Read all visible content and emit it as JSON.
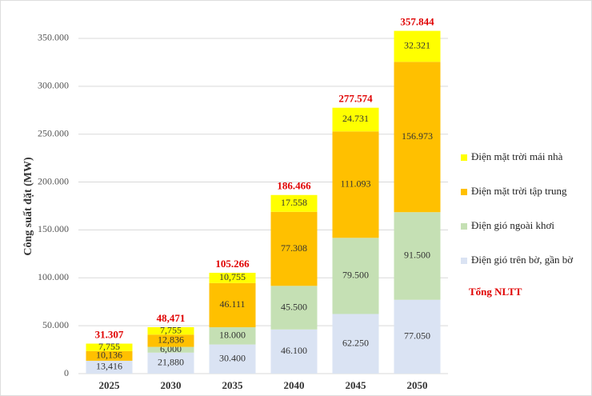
{
  "chart_data": {
    "type": "stacked_bar",
    "y_label": "Công suất đặt (MW)",
    "categories": [
      "2025",
      "2030",
      "2035",
      "2040",
      "2045",
      "2050"
    ],
    "series": [
      {
        "name": "Điện gió trên bờ, gần bờ",
        "color": "#dae3f3",
        "values": [
          13416,
          21880,
          30400,
          46100,
          62250,
          77050
        ],
        "value_labels": [
          "13,416",
          "21,880",
          "30.400",
          "46.100",
          "62.250",
          "77.050"
        ]
      },
      {
        "name": "Điện gió ngoài khơi",
        "color": "#c5e0b4",
        "values": [
          null,
          6000,
          18000,
          45500,
          79500,
          91500
        ],
        "value_labels": [
          null,
          "6,000",
          "18.000",
          "45.500",
          "79.500",
          "91.500"
        ]
      },
      {
        "name": "Điện mặt trời tập trung",
        "color": "#ffc000",
        "values": [
          10136,
          12836,
          46111,
          77308,
          111093,
          156973
        ],
        "value_labels": [
          "10,136",
          "12,836",
          "46.111",
          "77.308",
          "111.093",
          "156.973"
        ]
      },
      {
        "name": "Điện mặt trời mái nhà",
        "color": "#ffff00",
        "values": [
          7755,
          7755,
          10755,
          17558,
          24731,
          32321
        ],
        "value_labels": [
          "7,755",
          "7,755",
          "10,755",
          "17.558",
          "24.731",
          "32.321"
        ]
      }
    ],
    "totals": {
      "name": "Tổng NLTT",
      "color": "#e00000",
      "values": [
        31307,
        48471,
        105266,
        186466,
        277574,
        357844
      ],
      "value_labels": [
        "31.307",
        "48,471",
        "105.266",
        "186.466",
        "277.574",
        "357.844"
      ]
    },
    "ylim": [
      0,
      360000
    ],
    "yticks": [
      0,
      {
        "value": 50000,
        "label": "50.000"
      },
      {
        "value": 100000,
        "label": "100.000"
      },
      {
        "value": 150000,
        "label": "150.000"
      },
      {
        "value": 200000,
        "label": "200.000"
      },
      {
        "value": 250000,
        "label": "250.000"
      },
      {
        "value": 300000,
        "label": "300.000"
      },
      {
        "value": 350000,
        "label": "350.000"
      }
    ],
    "grid": true,
    "legend": "right"
  }
}
